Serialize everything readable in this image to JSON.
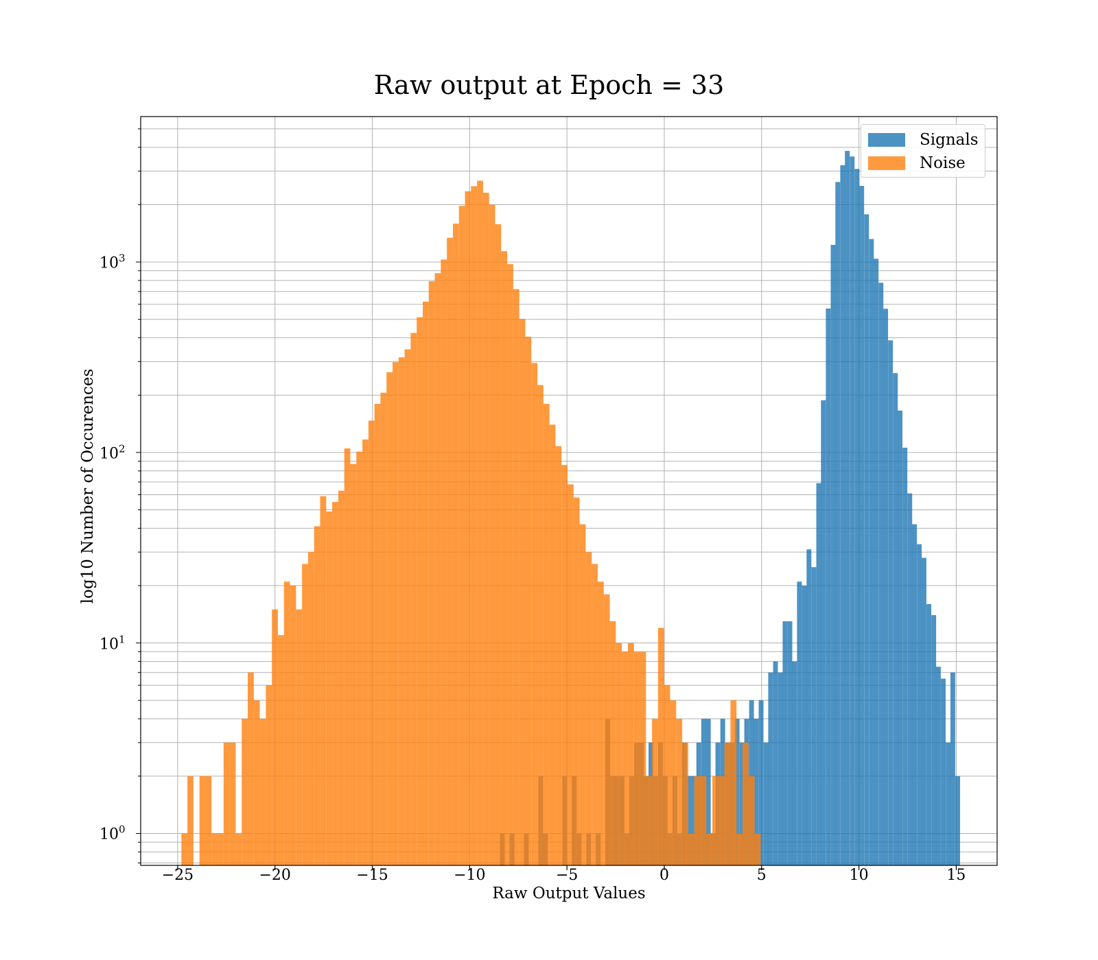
{
  "chart_data": {
    "type": "bar",
    "title": "Raw output at Epoch = 33",
    "xlabel": "Raw Output Values",
    "ylabel": "log10 Number of Occurences",
    "xlim": [
      -26.9,
      17.1
    ],
    "ylim": [
      0.68,
      5800
    ],
    "yscale": "log",
    "grid": true,
    "legend_position": "top-right",
    "xticks": [
      -25,
      -20,
      -15,
      -10,
      -5,
      0,
      5,
      10,
      15
    ],
    "xtick_labels": [
      "−25",
      "−20",
      "−15",
      "−10",
      "−5",
      "0",
      "5",
      "10",
      "15"
    ],
    "yticks": [
      {
        "value": 1,
        "base": "10",
        "exp": "0"
      },
      {
        "value": 10,
        "base": "10",
        "exp": "1"
      },
      {
        "value": 100,
        "base": "10",
        "exp": "2"
      },
      {
        "value": 1000,
        "base": "10",
        "exp": "3"
      }
    ],
    "series": [
      {
        "name": "Signals",
        "color": "#1f77b4",
        "opacity": 0.8,
        "bins": [
          [
            -8.44,
            1
          ],
          [
            -7.95,
            1
          ],
          [
            -7.21,
            1
          ],
          [
            -6.47,
            2
          ],
          [
            -6.23,
            1
          ],
          [
            -5.24,
            2
          ],
          [
            -4.75,
            2
          ],
          [
            -4.5,
            1
          ],
          [
            -4.01,
            1
          ],
          [
            -3.52,
            1
          ],
          [
            -3.03,
            4
          ],
          [
            -2.78,
            2
          ],
          [
            -2.54,
            2
          ],
          [
            -2.29,
            2
          ],
          [
            -2.04,
            1
          ],
          [
            -1.8,
            2
          ],
          [
            -1.55,
            3
          ],
          [
            -1.3,
            3
          ],
          [
            -1.06,
            2
          ],
          [
            -0.81,
            3
          ],
          [
            -0.57,
            2
          ],
          [
            -0.32,
            3
          ],
          [
            -0.07,
            2
          ],
          [
            0.17,
            1
          ],
          [
            0.42,
            2
          ],
          [
            0.66,
            1
          ],
          [
            0.91,
            3
          ],
          [
            1.16,
            2
          ],
          [
            1.4,
            2
          ],
          [
            1.65,
            3
          ],
          [
            1.9,
            4
          ],
          [
            2.14,
            4
          ],
          [
            2.39,
            1
          ],
          [
            2.63,
            3
          ],
          [
            2.88,
            4
          ],
          [
            3.13,
            3
          ],
          [
            3.37,
            3
          ],
          [
            3.62,
            4
          ],
          [
            3.87,
            3
          ],
          [
            4.11,
            4
          ],
          [
            4.36,
            5
          ],
          [
            4.6,
            4
          ],
          [
            4.85,
            5
          ],
          [
            5.1,
            3
          ],
          [
            5.34,
            7
          ],
          [
            5.59,
            8
          ],
          [
            5.84,
            7
          ],
          [
            6.08,
            13
          ],
          [
            6.33,
            13
          ],
          [
            6.57,
            8
          ],
          [
            6.82,
            21
          ],
          [
            7.07,
            20
          ],
          [
            7.31,
            31
          ],
          [
            7.56,
            25
          ],
          [
            7.81,
            69
          ],
          [
            8.05,
            188
          ],
          [
            8.3,
            570
          ],
          [
            8.55,
            1230
          ],
          [
            8.79,
            2630
          ],
          [
            9.04,
            3220
          ],
          [
            9.28,
            3830
          ],
          [
            9.53,
            3580
          ],
          [
            9.78,
            3080
          ],
          [
            10.02,
            2510
          ],
          [
            10.27,
            1780
          ],
          [
            10.52,
            1320
          ],
          [
            10.76,
            1040
          ],
          [
            11.01,
            778
          ],
          [
            11.25,
            568
          ],
          [
            11.5,
            388
          ],
          [
            11.75,
            261
          ],
          [
            11.99,
            166
          ],
          [
            12.24,
            106
          ],
          [
            12.49,
            61
          ],
          [
            12.73,
            42
          ],
          [
            12.98,
            33
          ],
          [
            13.22,
            28
          ],
          [
            13.47,
            16
          ],
          [
            13.72,
            14
          ],
          [
            13.96,
            7.5
          ],
          [
            14.21,
            6.5
          ],
          [
            14.46,
            3
          ],
          [
            14.7,
            7
          ],
          [
            14.95,
            2
          ]
        ]
      },
      {
        "name": "Noise",
        "color": "#ff7f0e",
        "opacity": 0.8,
        "bins": [
          [
            -24.81,
            1
          ],
          [
            -24.5,
            2
          ],
          [
            -24.19,
            0
          ],
          [
            -23.88,
            2
          ],
          [
            -23.57,
            2
          ],
          [
            -23.26,
            1
          ],
          [
            -22.95,
            1
          ],
          [
            -22.64,
            3
          ],
          [
            -22.33,
            3
          ],
          [
            -22.02,
            1
          ],
          [
            -21.71,
            4
          ],
          [
            -21.4,
            7
          ],
          [
            -21.09,
            5
          ],
          [
            -20.78,
            4
          ],
          [
            -20.47,
            6
          ],
          [
            -20.16,
            15
          ],
          [
            -19.85,
            11
          ],
          [
            -19.54,
            21
          ],
          [
            -19.23,
            20
          ],
          [
            -18.92,
            15
          ],
          [
            -18.61,
            26
          ],
          [
            -18.3,
            30
          ],
          [
            -17.99,
            41
          ],
          [
            -17.68,
            59
          ],
          [
            -17.37,
            49
          ],
          [
            -17.06,
            55
          ],
          [
            -16.75,
            63
          ],
          [
            -16.44,
            105
          ],
          [
            -16.13,
            87
          ],
          [
            -15.82,
            101
          ],
          [
            -15.51,
            117
          ],
          [
            -15.2,
            147
          ],
          [
            -14.89,
            180
          ],
          [
            -14.58,
            206
          ],
          [
            -14.27,
            264
          ],
          [
            -13.96,
            298
          ],
          [
            -13.65,
            316
          ],
          [
            -13.34,
            348
          ],
          [
            -13.03,
            424
          ],
          [
            -12.72,
            513
          ],
          [
            -12.41,
            619
          ],
          [
            -12.1,
            792
          ],
          [
            -11.79,
            874
          ],
          [
            -11.48,
            1030
          ],
          [
            -11.17,
            1340
          ],
          [
            -10.86,
            1590
          ],
          [
            -10.55,
            1970
          ],
          [
            -10.24,
            2350
          ],
          [
            -9.93,
            2500
          ],
          [
            -9.62,
            2670
          ],
          [
            -9.31,
            2310
          ],
          [
            -9.0,
            2000
          ],
          [
            -8.69,
            1580
          ],
          [
            -8.38,
            1140
          ],
          [
            -8.07,
            975
          ],
          [
            -7.76,
            720
          ],
          [
            -7.45,
            503
          ],
          [
            -7.14,
            405
          ],
          [
            -6.83,
            295
          ],
          [
            -6.52,
            226
          ],
          [
            -6.21,
            180
          ],
          [
            -5.9,
            140
          ],
          [
            -5.59,
            108
          ],
          [
            -5.28,
            86
          ],
          [
            -4.97,
            68
          ],
          [
            -4.66,
            58
          ],
          [
            -4.35,
            42
          ],
          [
            -4.04,
            30
          ],
          [
            -3.73,
            26
          ],
          [
            -3.42,
            21
          ],
          [
            -3.11,
            18
          ],
          [
            -2.8,
            13
          ],
          [
            -2.49,
            10
          ],
          [
            -2.18,
            9
          ],
          [
            -1.87,
            10
          ],
          [
            -1.56,
            9
          ],
          [
            -1.25,
            9
          ],
          [
            -0.94,
            2
          ],
          [
            -0.63,
            4
          ],
          [
            -0.32,
            12
          ],
          [
            -0.01,
            6
          ],
          [
            0.3,
            5
          ],
          [
            0.61,
            4
          ],
          [
            0.92,
            3
          ],
          [
            1.23,
            1
          ],
          [
            1.54,
            2
          ],
          [
            1.85,
            2
          ],
          [
            2.16,
            1
          ],
          [
            2.47,
            2
          ],
          [
            2.78,
            2
          ],
          [
            3.09,
            3
          ],
          [
            3.4,
            5
          ],
          [
            3.71,
            1
          ],
          [
            4.02,
            3
          ],
          [
            4.33,
            2
          ],
          [
            4.64,
            1
          ]
        ]
      }
    ]
  }
}
